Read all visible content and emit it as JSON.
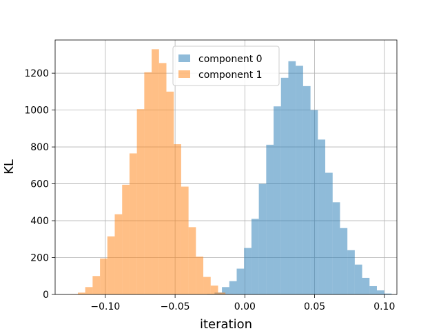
{
  "chart_data": {
    "type": "bar",
    "subtype": "histogram-overlay",
    "title": "",
    "xlabel": "iteration",
    "ylabel": "KL",
    "xlim": [
      -0.136,
      0.109
    ],
    "ylim": [
      0,
      1380
    ],
    "xticks": [
      {
        "value": -0.1,
        "label": "−0.10"
      },
      {
        "value": -0.05,
        "label": "−0.05"
      },
      {
        "value": 0.0,
        "label": "0.00"
      },
      {
        "value": 0.05,
        "label": "0.05"
      },
      {
        "value": 0.1,
        "label": "0.10"
      }
    ],
    "yticks": [
      {
        "value": 0,
        "label": "0"
      },
      {
        "value": 200,
        "label": "200"
      },
      {
        "value": 400,
        "label": "400"
      },
      {
        "value": 600,
        "label": "600"
      },
      {
        "value": 800,
        "label": "800"
      },
      {
        "value": 1000,
        "label": "1000"
      },
      {
        "value": 1200,
        "label": "1200"
      }
    ],
    "grid": true,
    "legend_position": "top-center",
    "series": [
      {
        "name": "component 0",
        "color": "#1f77b4",
        "opacity": 0.5,
        "bin_start": -0.027,
        "bin_width": 0.00529,
        "counts": [
          3,
          10,
          40,
          72,
          140,
          252,
          410,
          600,
          812,
          1020,
          1175,
          1265,
          1240,
          1130,
          1000,
          840,
          660,
          500,
          360,
          240,
          162,
          90,
          45,
          22,
          5
        ]
      },
      {
        "name": "component 1",
        "color": "#ff7f0e",
        "opacity": 0.5,
        "bin_start": -0.125,
        "bin_width": 0.00529,
        "counts": [
          2,
          10,
          40,
          100,
          195,
          315,
          435,
          595,
          765,
          1005,
          1205,
          1330,
          1255,
          1100,
          815,
          585,
          365,
          205,
          95,
          48,
          10,
          2
        ]
      }
    ]
  }
}
